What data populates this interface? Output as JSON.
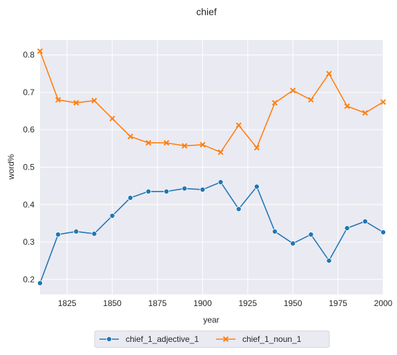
{
  "chart_data": {
    "type": "line",
    "title": "chief",
    "xlabel": "year",
    "ylabel": "word%",
    "xlim": [
      1810,
      2000
    ],
    "ylim": [
      0.16,
      0.84
    ],
    "xticks": [
      1825,
      1850,
      1875,
      1900,
      1925,
      1950,
      1975,
      2000
    ],
    "yticks": [
      0.2,
      0.3,
      0.4,
      0.5,
      0.6,
      0.7,
      0.8
    ],
    "grid": true,
    "legend_position": "bottom-center-outside",
    "x": [
      1810,
      1820,
      1830,
      1840,
      1850,
      1860,
      1870,
      1880,
      1890,
      1900,
      1910,
      1920,
      1930,
      1940,
      1950,
      1960,
      1970,
      1980,
      1990,
      2000
    ],
    "series": [
      {
        "name": "chief_1_adjective_1",
        "marker": "circle",
        "color": "#1f77b4",
        "values": [
          0.19,
          0.32,
          0.328,
          0.322,
          0.37,
          0.418,
          0.435,
          0.435,
          0.443,
          0.44,
          0.46,
          0.388,
          0.448,
          0.328,
          0.296,
          0.32,
          0.25,
          0.337,
          0.355,
          0.326
        ]
      },
      {
        "name": "chief_1_noun_1",
        "marker": "x",
        "color": "#ff7f0e",
        "values": [
          0.81,
          0.68,
          0.672,
          0.678,
          0.63,
          0.582,
          0.565,
          0.565,
          0.557,
          0.56,
          0.54,
          0.612,
          0.552,
          0.672,
          0.705,
          0.68,
          0.75,
          0.663,
          0.645,
          0.674
        ]
      }
    ]
  },
  "style": {
    "plot_background": "#eaeaf2",
    "grid_color": "#ffffff"
  }
}
